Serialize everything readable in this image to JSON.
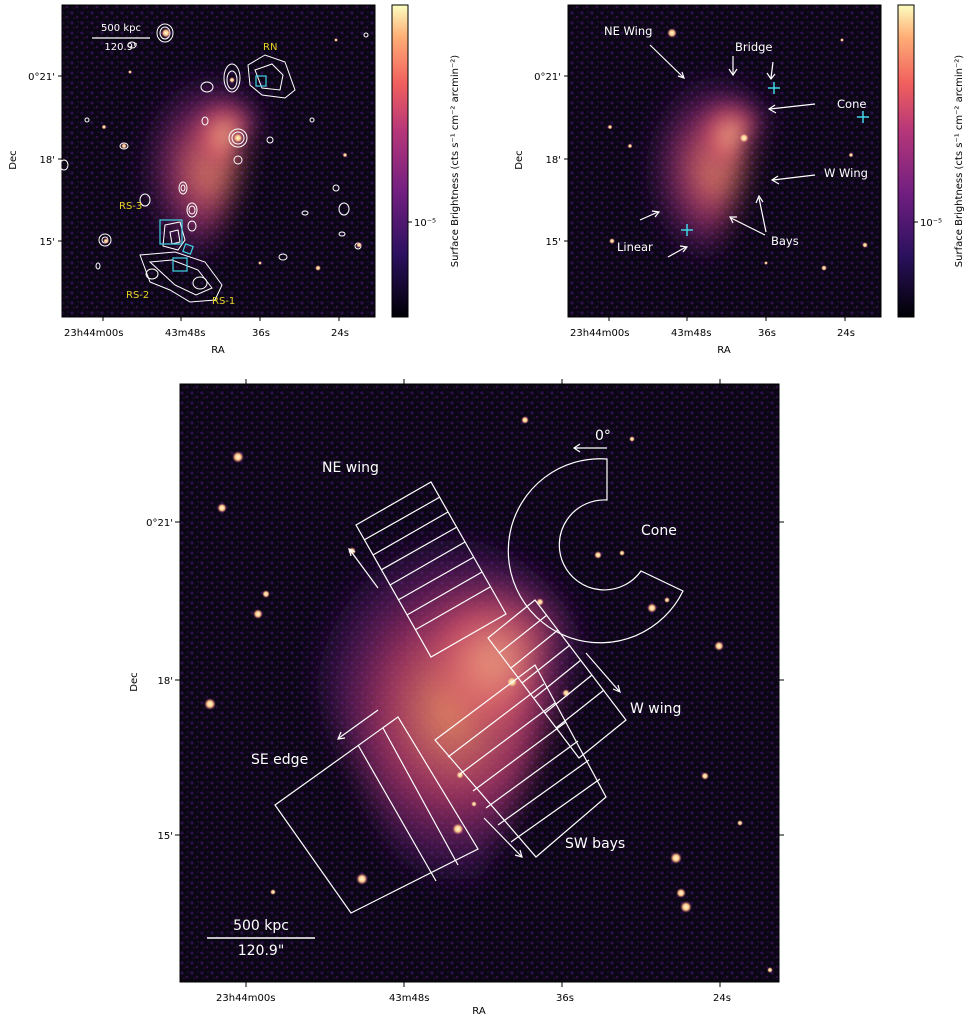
{
  "colors": {
    "bg": "#06040c",
    "accent_yellow": "#e6d422",
    "accent_cyan": "#3fd6e6",
    "contour": "#ffffff"
  },
  "common": {
    "xlabel": "RA",
    "ylabel": "Dec",
    "ra_ticks": [
      "23h44m00s",
      "43m48s",
      "36s",
      "24s"
    ],
    "dec_ticks": [
      "0°21'",
      "18'",
      "15'"
    ],
    "colorbar_label": "Surface Brightness (cts s⁻¹ cm⁻² arcmin⁻²)",
    "colorbar_tick": "10⁻⁵"
  },
  "panel_a": {
    "scalebar_kpc": "500 kpc",
    "scalebar_arcsec": "120.9\"",
    "labels": {
      "rn": "RN",
      "rs3": "RS-3",
      "rs2": "RS-2",
      "rs1": "RS-1"
    }
  },
  "panel_b": {
    "labels": {
      "ne_wing": "NE Wing",
      "bridge": "Bridge",
      "cone": "Cone",
      "w_wing": "W Wing",
      "bays": "Bays",
      "linear": "Linear"
    }
  },
  "panel_c": {
    "labels": {
      "angle": "0°",
      "ne_wing": "NE wing",
      "cone": "Cone",
      "w_wing": "W wing",
      "se_edge": "SE edge",
      "sw_bays": "SW bays"
    },
    "scalebar_kpc": "500 kpc",
    "scalebar_arcsec": "120.9\""
  }
}
